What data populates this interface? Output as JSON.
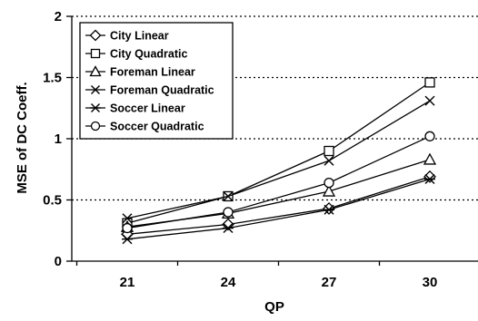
{
  "chart_data": {
    "type": "line",
    "title": "",
    "xlabel": "QP",
    "ylabel": "MSE of DC Coeff.",
    "categories": [
      "21",
      "24",
      "27",
      "30"
    ],
    "ylim": [
      0,
      2
    ],
    "yticks": [
      "0",
      "0.5",
      "1",
      "1.5",
      "2"
    ],
    "grid": "horizontal dotted",
    "legend_position": "top-left",
    "series": [
      {
        "name": "City Linear",
        "marker": "diamond",
        "values": [
          0.22,
          0.3,
          0.43,
          0.69
        ]
      },
      {
        "name": "City Quadratic",
        "marker": "square",
        "values": [
          0.31,
          0.53,
          0.9,
          1.46
        ]
      },
      {
        "name": "Foreman Linear",
        "marker": "triangle",
        "values": [
          0.28,
          0.39,
          0.57,
          0.83
        ]
      },
      {
        "name": "Foreman Quadratic",
        "marker": "x",
        "values": [
          0.35,
          0.53,
          0.82,
          1.31
        ]
      },
      {
        "name": "Soccer Linear",
        "marker": "asterisk",
        "values": [
          0.18,
          0.27,
          0.42,
          0.67
        ]
      },
      {
        "name": "Soccer Quadratic",
        "marker": "circle",
        "values": [
          0.27,
          0.4,
          0.64,
          1.02
        ]
      }
    ],
    "colors": {
      "line": "#000000",
      "grid": "#000000",
      "background": "#ffffff"
    }
  }
}
